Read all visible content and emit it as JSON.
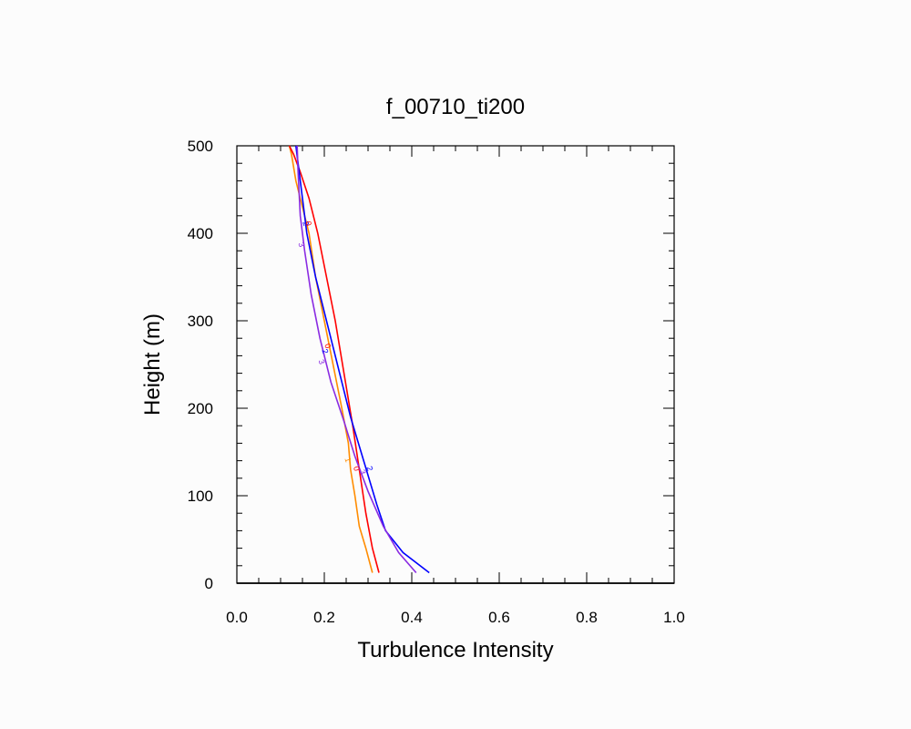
{
  "chart_data": {
    "type": "line",
    "title": "f_00710_ti200",
    "xlabel": "Turbulence Intensity",
    "ylabel": "Height (m)",
    "xlim": [
      0.0,
      1.0
    ],
    "ylim": [
      0,
      500
    ],
    "xticks": [
      "0.0",
      "0.2",
      "0.4",
      "0.6",
      "0.8",
      "1.0"
    ],
    "yticks": [
      "0",
      "100",
      "200",
      "300",
      "400",
      "500"
    ],
    "grid": false,
    "series": [
      {
        "label": "1",
        "color": "#ff8c00",
        "x": [
          0.31,
          0.295,
          0.28,
          0.27,
          0.26,
          0.255,
          0.24,
          0.22,
          0.2,
          0.18,
          0.165,
          0.15,
          0.135,
          0.125,
          0.12
        ],
        "y": [
          12,
          40,
          65,
          100,
          130,
          160,
          200,
          250,
          300,
          350,
          400,
          430,
          460,
          490,
          500
        ]
      },
      {
        "label": "0",
        "color": "#ff0000",
        "x": [
          0.325,
          0.31,
          0.295,
          0.28,
          0.265,
          0.245,
          0.225,
          0.205,
          0.185,
          0.165,
          0.145,
          0.13,
          0.12
        ],
        "y": [
          12,
          40,
          80,
          130,
          180,
          240,
          300,
          350,
          400,
          440,
          470,
          490,
          500
        ]
      },
      {
        "label": "2",
        "color": "#0000ff",
        "x": [
          0.44,
          0.38,
          0.34,
          0.32,
          0.29,
          0.26,
          0.24,
          0.22,
          0.2,
          0.18,
          0.16,
          0.145,
          0.135
        ],
        "y": [
          12,
          35,
          60,
          90,
          140,
          190,
          230,
          270,
          310,
          350,
          400,
          460,
          500
        ]
      },
      {
        "label": "3",
        "color": "#8a2be2",
        "x": [
          0.41,
          0.37,
          0.335,
          0.3,
          0.27,
          0.245,
          0.215,
          0.19,
          0.17,
          0.155,
          0.145,
          0.14,
          0.138
        ],
        "y": [
          12,
          35,
          65,
          105,
          145,
          185,
          230,
          280,
          330,
          380,
          420,
          470,
          500
        ]
      }
    ],
    "inline_labels": [
      {
        "text": "2",
        "color": "#0000ff",
        "x": 0.152,
        "y": 410
      },
      {
        "text": "0",
        "color": "#ff0000",
        "x": 0.158,
        "y": 410
      },
      {
        "text": "3",
        "color": "#8a2be2",
        "x": 0.142,
        "y": 386
      },
      {
        "text": "0",
        "color": "#ff0000",
        "x": 0.202,
        "y": 270
      },
      {
        "text": "2",
        "color": "#0000ff",
        "x": 0.196,
        "y": 264
      },
      {
        "text": "3",
        "color": "#8a2be2",
        "x": 0.188,
        "y": 252
      },
      {
        "text": "1",
        "color": "#ff8c00",
        "x": 0.248,
        "y": 140
      },
      {
        "text": "0",
        "color": "#ff0000",
        "x": 0.268,
        "y": 130
      },
      {
        "text": "3",
        "color": "#8a2be2",
        "x": 0.282,
        "y": 126
      },
      {
        "text": "2",
        "color": "#0000ff",
        "x": 0.298,
        "y": 130
      }
    ]
  }
}
